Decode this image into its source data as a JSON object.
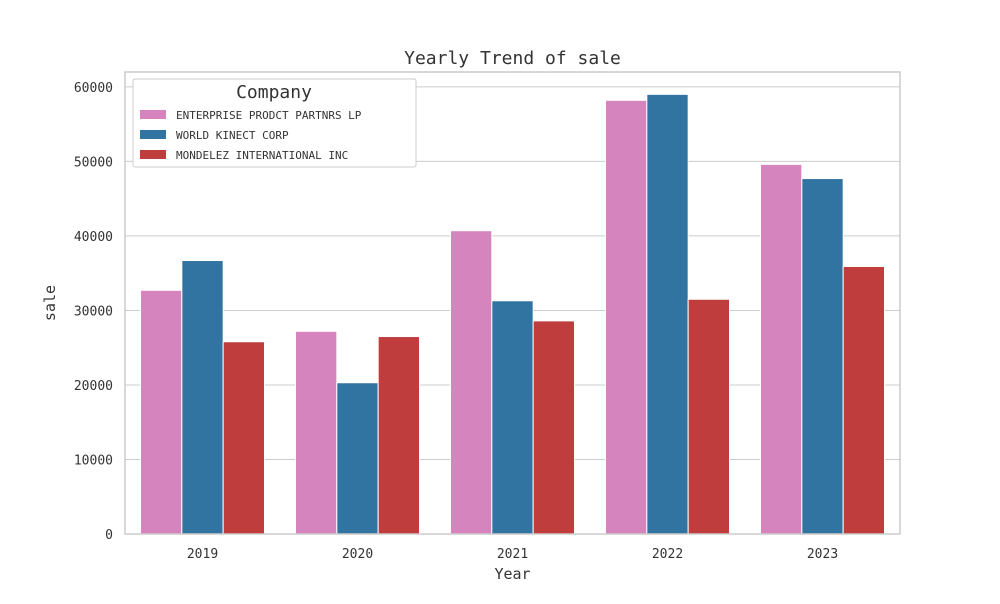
{
  "chart_data": {
    "type": "bar",
    "title": "Yearly Trend of sale",
    "xlabel": "Year",
    "ylabel": "sale",
    "categories": [
      "2019",
      "2020",
      "2021",
      "2022",
      "2023"
    ],
    "ylim": [
      0,
      62000
    ],
    "yticks": [
      0,
      10000,
      20000,
      30000,
      40000,
      50000,
      60000
    ],
    "grid": true,
    "legend": {
      "title": "Company",
      "position": "top-left"
    },
    "series": [
      {
        "name": "ENTERPRISE PRODCT PARTNRS LP",
        "color": "#d684bd",
        "values": [
          32700,
          27200,
          40700,
          58200,
          49600
        ]
      },
      {
        "name": "WORLD KINECT CORP",
        "color": "#3274a1",
        "values": [
          36700,
          20300,
          31300,
          59000,
          47700
        ]
      },
      {
        "name": "MONDELEZ INTERNATIONAL INC",
        "color": "#c03d3e",
        "values": [
          25800,
          26500,
          28600,
          31500,
          35900
        ]
      }
    ]
  }
}
